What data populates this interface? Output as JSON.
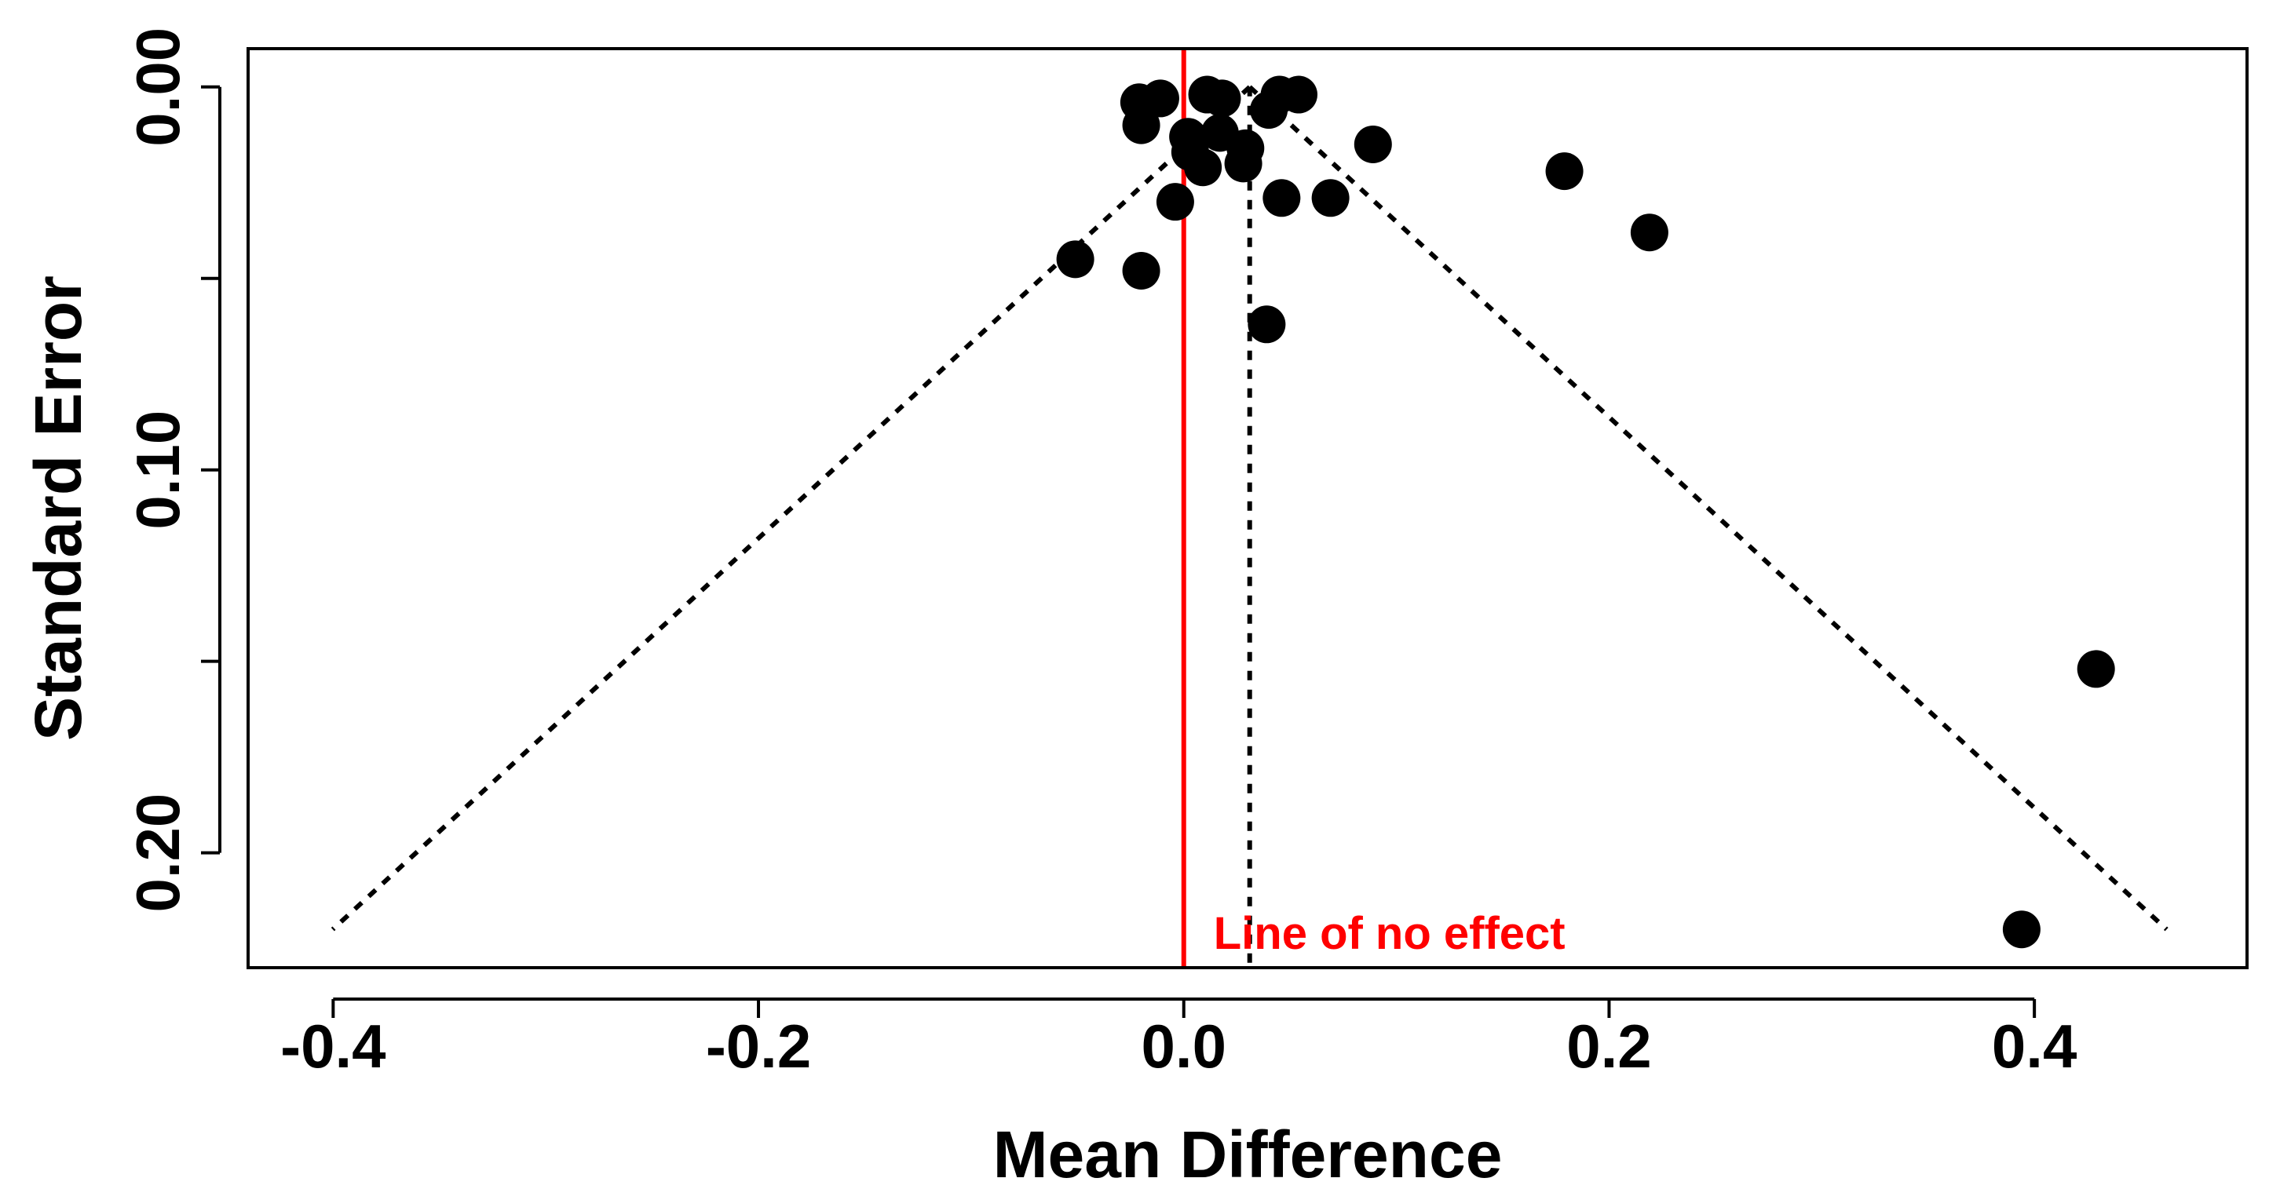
{
  "chart_data": {
    "type": "scatter",
    "subtype": "funnel-plot",
    "title": "",
    "xlabel": "Mean Difference",
    "ylabel": "Standard Error",
    "xlim": [
      -0.44,
      0.5
    ],
    "ylim": [
      0.23,
      -0.01
    ],
    "y_axis_reversed": true,
    "xticks": [
      -0.4,
      -0.2,
      0.0,
      0.2,
      0.4
    ],
    "xtick_labels": [
      "-0.4",
      "-0.2",
      "0.0",
      "0.2",
      "0.4"
    ],
    "yticks": [
      0.0,
      0.05,
      0.1,
      0.15,
      0.2
    ],
    "ytick_labels": [
      "0.00",
      "",
      "0.10",
      "",
      "0.20"
    ],
    "points": [
      {
        "x": -0.021,
        "y": 0.004
      },
      {
        "x": -0.011,
        "y": 0.003
      },
      {
        "x": -0.02,
        "y": 0.01
      },
      {
        "x": 0.011,
        "y": 0.002
      },
      {
        "x": 0.018,
        "y": 0.003
      },
      {
        "x": 0.045,
        "y": 0.002
      },
      {
        "x": 0.054,
        "y": 0.002
      },
      {
        "x": 0.04,
        "y": 0.006
      },
      {
        "x": 0.002,
        "y": 0.013
      },
      {
        "x": 0.017,
        "y": 0.012
      },
      {
        "x": 0.029,
        "y": 0.016
      },
      {
        "x": 0.003,
        "y": 0.017
      },
      {
        "x": 0.009,
        "y": 0.021
      },
      {
        "x": 0.028,
        "y": 0.02
      },
      {
        "x": 0.089,
        "y": 0.015
      },
      {
        "x": -0.004,
        "y": 0.03
      },
      {
        "x": 0.046,
        "y": 0.029
      },
      {
        "x": 0.069,
        "y": 0.029
      },
      {
        "x": 0.179,
        "y": 0.022
      },
      {
        "x": 0.219,
        "y": 0.038
      },
      {
        "x": -0.051,
        "y": 0.045
      },
      {
        "x": -0.02,
        "y": 0.048
      },
      {
        "x": 0.039,
        "y": 0.062
      },
      {
        "x": 0.429,
        "y": 0.152
      },
      {
        "x": 0.394,
        "y": 0.22
      }
    ],
    "pooled_estimate": 0.031,
    "funnel_se_max": 0.22,
    "funnel_z": 1.96,
    "reference_line": {
      "x": 0.0,
      "color": "#ff0000",
      "label": "Line of no effect"
    },
    "point_color": "#000000",
    "funnel_color": "#000000"
  }
}
